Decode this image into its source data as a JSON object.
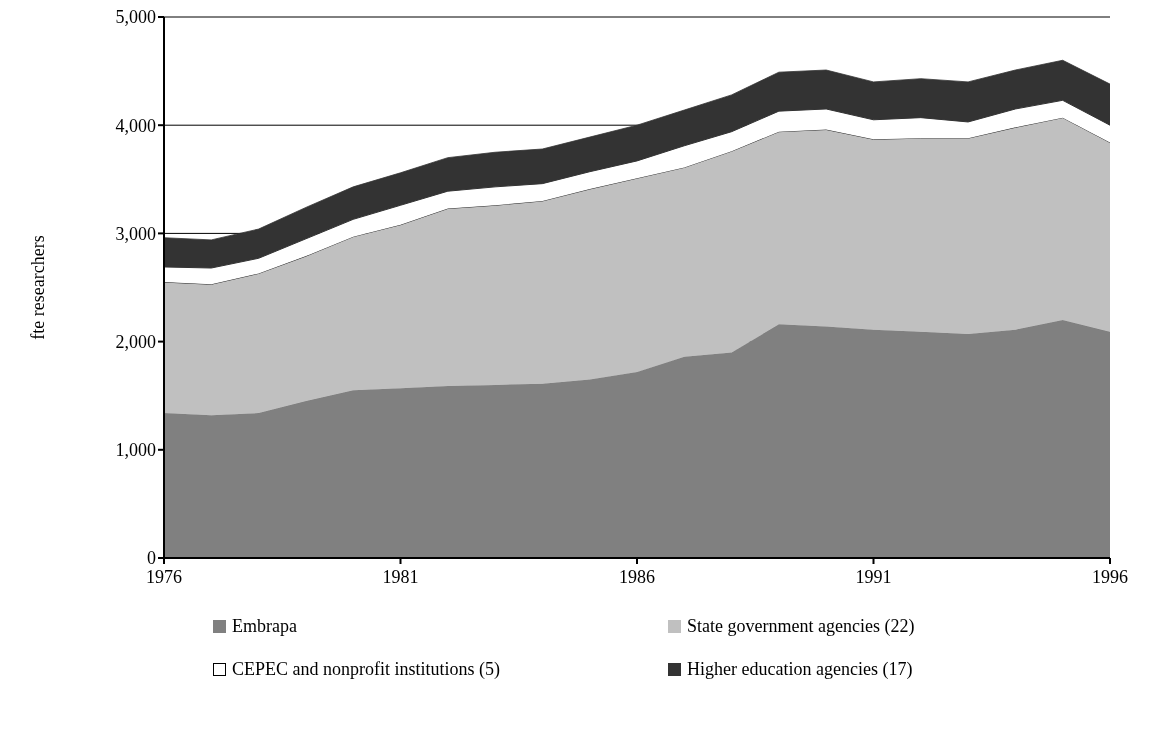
{
  "chart_data": {
    "type": "area",
    "stacked": true,
    "ylabel": "fte researchers",
    "x": [
      1976,
      1977,
      1978,
      1979,
      1980,
      1981,
      1982,
      1983,
      1984,
      1985,
      1986,
      1987,
      1988,
      1989,
      1990,
      1991,
      1992,
      1993,
      1994,
      1995,
      1996
    ],
    "xlim": [
      1976,
      1996
    ],
    "xticks": [
      1976,
      1981,
      1986,
      1991,
      1996
    ],
    "ylim": [
      0,
      5000
    ],
    "yticks": [
      0,
      {
        "value": 1000,
        "label": "1,000"
      },
      {
        "value": 2000,
        "label": "2,000"
      },
      {
        "value": 3000,
        "label": "3,000"
      },
      {
        "value": 4000,
        "label": "4,000"
      },
      {
        "value": 5000,
        "label": "5,000"
      }
    ],
    "grid": "y",
    "legend": "bottom",
    "series": [
      {
        "name": "Embrapa",
        "color": "#808080",
        "values": [
          1340,
          1320,
          1340,
          1450,
          1550,
          1570,
          1590,
          1600,
          1610,
          1650,
          1720,
          1860,
          1900,
          2160,
          2140,
          2110,
          2090,
          2070,
          2110,
          2200,
          2090
        ]
      },
      {
        "name": "State government agencies (22)",
        "color": "#c0c0c0",
        "values": [
          1210,
          1210,
          1290,
          1340,
          1420,
          1510,
          1640,
          1660,
          1690,
          1760,
          1790,
          1750,
          1860,
          1780,
          1820,
          1760,
          1790,
          1810,
          1870,
          1870,
          1750
        ]
      },
      {
        "name": "CEPEC and nonprofit institutions (5)",
        "color": "#ffffff",
        "values": [
          140,
          150,
          140,
          160,
          160,
          180,
          160,
          170,
          160,
          160,
          160,
          200,
          180,
          190,
          190,
          180,
          190,
          150,
          170,
          160,
          160
        ]
      },
      {
        "name": "Higher education agencies (17)",
        "color": "#333333",
        "values": [
          270,
          260,
          270,
          290,
          300,
          300,
          310,
          320,
          320,
          320,
          330,
          330,
          340,
          360,
          360,
          350,
          360,
          370,
          360,
          370,
          380
        ]
      }
    ]
  }
}
